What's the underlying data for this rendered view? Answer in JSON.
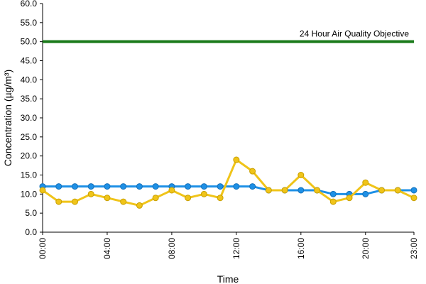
{
  "chart_data": {
    "type": "line",
    "xlabel": "Time",
    "ylabel": "Concentration (µg/m³)",
    "ylim": [
      0,
      60
    ],
    "y_ticks": [
      "0.0",
      "5.0",
      "10.0",
      "15.0",
      "20.0",
      "25.0",
      "30.0",
      "35.0",
      "40.0",
      "45.0",
      "50.0",
      "55.0",
      "60.0"
    ],
    "x_tick_labels": [
      "00:00",
      "04:00",
      "08:00",
      "12:00",
      "16:00",
      "20:00",
      "23:00"
    ],
    "x_hours": [
      0,
      1,
      2,
      3,
      4,
      5,
      6,
      7,
      8,
      9,
      10,
      11,
      12,
      13,
      14,
      15,
      16,
      17,
      18,
      19,
      20,
      21,
      22,
      23
    ],
    "grid": false,
    "series": [
      {
        "color": "#1e90e6",
        "values": [
          12,
          12,
          12,
          12,
          12,
          12,
          12,
          12,
          12,
          12,
          12,
          12,
          12,
          12,
          11,
          11,
          11,
          11,
          10,
          10,
          10,
          11,
          11,
          11
        ]
      },
      {
        "color": "#f0c419",
        "values": [
          11,
          8,
          8,
          10,
          9,
          8,
          7,
          9,
          11,
          9,
          10,
          9,
          19,
          16,
          11,
          11,
          15,
          11,
          8,
          9,
          13,
          11,
          11,
          9
        ]
      }
    ],
    "reference_line": {
      "value": 50,
      "label": "24 Hour Air Quality Objective",
      "color": "#1a7a1a"
    }
  }
}
